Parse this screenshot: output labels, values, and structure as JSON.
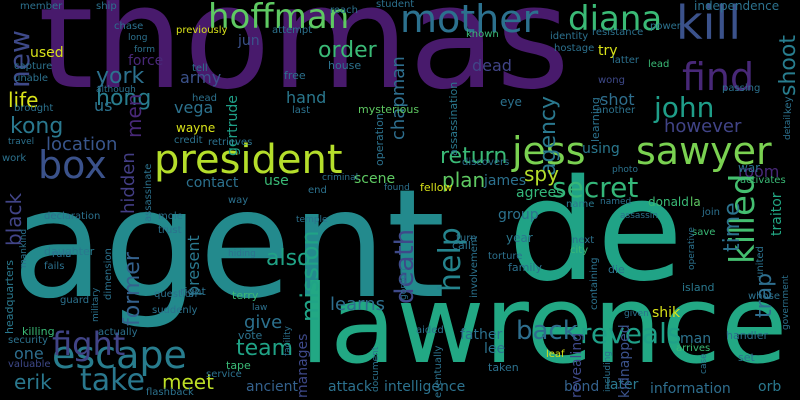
{
  "words": {
    "thomas": "thomas",
    "agent": "agent",
    "de": "de",
    "lawrence": "lawrence",
    "president": "president",
    "sawyer": "sawyer",
    "kill": "kill",
    "mother": "mother",
    "hoffman": "hoffman",
    "diana": "diana",
    "find": "find",
    "escape": "escape",
    "box": "box",
    "jess": "jess",
    "john": "john",
    "new": "new",
    "fight": "fight",
    "take": "take",
    "secret": "secret",
    "killed": "killed",
    "help": "help",
    "mission": "mission",
    "death": "death",
    "reveals": "reveals",
    "back": "back",
    "return": "return",
    "plan": "plan",
    "team": "team",
    "meet": "meet",
    "york": "york",
    "hong": "hong",
    "kong": "kong",
    "life": "life",
    "location": "location",
    "order": "order",
    "agency": "agency",
    "however": "however",
    "shoot": "shoot",
    "time": "time",
    "trap": "trap",
    "room": "room",
    "spy": "spy",
    "also": "also",
    "learns": "learns",
    "give": "give",
    "erik": "erik",
    "one": "one",
    "black": "black",
    "former": "former",
    "hidden": "hidden",
    "men": "men",
    "army": "army",
    "vega": "vega",
    "force": "force",
    "jun": "jun",
    "hand": "hand",
    "dead": "dead",
    "shot": "shot",
    "chapman": "chapman",
    "gertrude": "gertrude",
    "wayne": "wayne",
    "used": "used",
    "us": "us",
    "contact": "contact",
    "present": "present",
    "use": "use",
    "scene": "scene",
    "manages": "manages",
    "agrees": "agrees",
    "james": "james",
    "group": "group",
    "father": "father",
    "shik": "shik",
    "bond": "bond",
    "later": "later",
    "intelligence": "intelligence",
    "attack": "attack",
    "ancient": "ancient",
    "information": "information",
    "orb": "orb",
    "lee": "lee",
    "man": "man",
    "kidnapped": "kidnapped",
    "revealing": "revealing",
    "year": "year",
    "using": "using",
    "donald": "donald",
    "la": "la",
    "traitor": "traitor",
    "war": "war",
    "try": "try",
    "independence": "independence",
    "mysterious": "mysterious",
    "operation": "operation",
    "assassination": "assassination",
    "learning": "learning",
    "wong": "wong",
    "eye": "eye",
    "fellow": "fellow",
    "name": "name",
    "killing": "killing",
    "security": "security",
    "valuable": "valuable",
    "daughter": "daughter",
    "headquarters": "headquarters",
    "right": "right",
    "terry": "terry",
    "question": "question",
    "suddenly": "suddenly",
    "actually": "actually",
    "vote": "vote",
    "tape": "tape",
    "service": "service",
    "flashback": "flashback",
    "taken": "taken",
    "eventually": "eventually",
    "aided": "aided",
    "set": "set",
    "handler": "handler",
    "arrives": "arrives",
    "island": "island",
    "family": "family",
    "die": "die",
    "city": "city",
    "next": "next",
    "call": "call",
    "torture": "torture",
    "involvement": "involvement",
    "gordon": "gordon",
    "containing": "containing",
    "join": "join",
    "save": "save",
    "whose": "whose",
    "united": "united",
    "government": "government",
    "activates": "activates",
    "detail": "detail",
    "key": "key",
    "passing": "passing",
    "power": "power",
    "lead": "lead",
    "latter": "latter",
    "another": "another",
    "identity": "identity",
    "resistance": "resistance",
    "hostage": "hostage",
    "known": "known",
    "student": "student",
    "reach": "reach",
    "attempt": "attempt",
    "previously": "previously",
    "tell": "tell",
    "house": "house",
    "free": "free",
    "last": "last",
    "head": "head",
    "credit": "credit",
    "retrieves": "retrieves",
    "assassinate": "assassinate",
    "although": "although",
    "dimension": "dimension",
    "trust": "trust",
    "mole": "mole",
    "temple": "temple",
    "assassin": "assassin",
    "discovers": "discovers",
    "photo": "photo",
    "named": "named",
    "criminal": "criminal",
    "found": "found",
    "end": "end",
    "member": "member",
    "ship": "ship",
    "chase": "chase",
    "form": "form",
    "long": "long",
    "capture": "capture",
    "unable": "unable",
    "brought": "brought",
    "travel": "travel",
    "work": "work",
    "declaration": "declaration",
    "rule": "rule",
    "fails": "fails",
    "guard": "guard",
    "way": "way",
    "hiding": "hiding",
    "turn": "turn",
    "military": "military",
    "facility": "facility",
    "document": "document",
    "leaf": "leaf",
    "including": "including",
    "case": "case",
    "given": "given",
    "operative": "operative",
    "law": "law",
    "mankind": "mankind"
  }
}
